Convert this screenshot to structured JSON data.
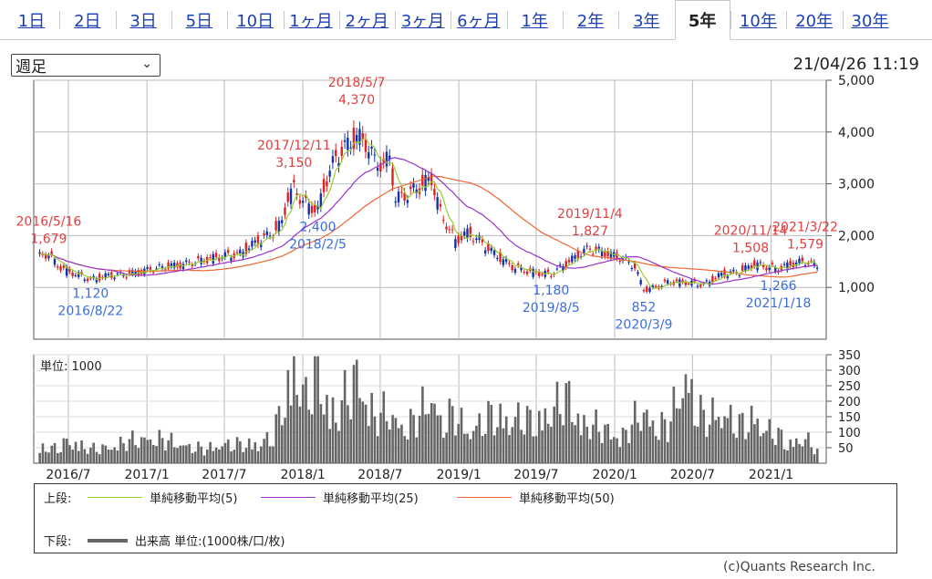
{
  "tabs": [
    "1日",
    "2日",
    "3日",
    "5日",
    "10日",
    "1ヶ月",
    "2ヶ月",
    "3ヶ月",
    "6ヶ月",
    "1年",
    "2年",
    "3年",
    "5年",
    "10年",
    "20年",
    "30年"
  ],
  "active_tab": "5年",
  "period_select": "週足",
  "timestamp": "21/04/26 11:19",
  "chart_data": [
    {
      "type": "line",
      "name": "price",
      "x_ticks": [
        "2016/7",
        "2017/1",
        "2017/7",
        "2018/1",
        "2018/7",
        "2019/1",
        "2019/7",
        "2020/1",
        "2020/7",
        "2021/1"
      ],
      "y_ticks": [
        "1,000",
        "2,000",
        "3,000",
        "4,000",
        "5,000"
      ],
      "ylim": [
        0,
        5000
      ],
      "price_series": [
        [
          "2016/4/25",
          1600
        ],
        [
          "2016/5/16",
          1650
        ],
        [
          "2016/6/6",
          1420
        ],
        [
          "2016/7/4",
          1300
        ],
        [
          "2016/8/22",
          1150
        ],
        [
          "2016/10/3",
          1230
        ],
        [
          "2016/11/14",
          1250
        ],
        [
          "2017/1/2",
          1330
        ],
        [
          "2017/2/13",
          1400
        ],
        [
          "2017/4/3",
          1450
        ],
        [
          "2017/5/15",
          1530
        ],
        [
          "2017/6/26",
          1600
        ],
        [
          "2017/8/7",
          1650
        ],
        [
          "2017/9/18",
          1900
        ],
        [
          "2017/10/23",
          2050
        ],
        [
          "2017/11/13",
          2250
        ],
        [
          "2017/11/27",
          2750
        ],
        [
          "2017/12/11",
          2900
        ],
        [
          "2018/1/8",
          2600
        ],
        [
          "2018/2/5",
          2500
        ],
        [
          "2018/2/26",
          3100
        ],
        [
          "2018/3/19",
          3500
        ],
        [
          "2018/4/9",
          3700
        ],
        [
          "2018/5/7",
          3900
        ],
        [
          "2018/5/28",
          3800
        ],
        [
          "2018/6/18",
          3450
        ],
        [
          "2018/7/9",
          3350
        ],
        [
          "2018/7/23",
          3550
        ],
        [
          "2018/8/6",
          2700
        ],
        [
          "2018/9/3",
          2800
        ],
        [
          "2018/10/1",
          2950
        ],
        [
          "2018/10/29",
          3100
        ],
        [
          "2018/11/19",
          2450
        ],
        [
          "2018/12/24",
          1900
        ],
        [
          "2019/1/21",
          2050
        ],
        [
          "2019/2/18",
          1900
        ],
        [
          "2019/3/25",
          1650
        ],
        [
          "2019/5/6",
          1400
        ],
        [
          "2019/6/17",
          1300
        ],
        [
          "2019/8/5",
          1250
        ],
        [
          "2019/9/16",
          1500
        ],
        [
          "2019/10/21",
          1700
        ],
        [
          "2019/11/4",
          1750
        ],
        [
          "2019/12/16",
          1650
        ],
        [
          "2020/1/20",
          1550
        ],
        [
          "2020/2/17",
          1400
        ],
        [
          "2020/3/9",
          950
        ],
        [
          "2020/4/6",
          1000
        ],
        [
          "2020/5/4",
          1100
        ],
        [
          "2020/6/15",
          1100
        ],
        [
          "2020/7/27",
          1050
        ],
        [
          "2020/9/7",
          1250
        ],
        [
          "2020/10/19",
          1300
        ],
        [
          "2020/11/23",
          1450
        ],
        [
          "2020/12/21",
          1400
        ],
        [
          "2021/1/18",
          1350
        ],
        [
          "2021/2/15",
          1450
        ],
        [
          "2021/3/22",
          1500
        ],
        [
          "2021/4/19",
          1420
        ]
      ],
      "annotations": [
        {
          "date": "2016/5/16",
          "value": "1,679",
          "type": "high"
        },
        {
          "date": "2016/8/22",
          "value": "1,120",
          "type": "low"
        },
        {
          "date": "2017/12/11",
          "value": "3,150",
          "type": "high"
        },
        {
          "date": "2018/2/5",
          "value": "2,400",
          "type": "low"
        },
        {
          "date": "2018/5/7",
          "value": "4,370",
          "type": "high"
        },
        {
          "date": "2019/11/4",
          "value": "1,827",
          "type": "high"
        },
        {
          "date": "2019/8/5",
          "value": "1,180",
          "type": "low"
        },
        {
          "date": "2020/3/9",
          "value": "852",
          "type": "low"
        },
        {
          "date": "2020/11/14",
          "value": "1,508",
          "type": "high"
        },
        {
          "date": "2021/3/22",
          "value": "1,579",
          "type": "high"
        },
        {
          "date": "2021/1/18",
          "value": "1,266",
          "type": "low"
        }
      ],
      "colors": {
        "ma5": "#99cc33",
        "ma25": "#9933cc",
        "ma50": "#ee6633",
        "up": "#dd2222",
        "down": "#1133aa",
        "high_label": "#e04040",
        "low_label": "#3a6de0"
      }
    },
    {
      "type": "bar",
      "name": "volume",
      "unit_label": "単位: 1000",
      "y_ticks": [
        "50",
        "100",
        "150",
        "200",
        "250",
        "300",
        "350"
      ],
      "ylim": [
        0,
        350
      ],
      "volume_series": [
        [
          "2016/4/25",
          60
        ],
        [
          "2016/6/6",
          45
        ],
        [
          "2016/7/4",
          80
        ],
        [
          "2016/8/22",
          45
        ],
        [
          "2016/10/3",
          55
        ],
        [
          "2016/11/14",
          70
        ],
        [
          "2017/1/2",
          85
        ],
        [
          "2017/2/13",
          75
        ],
        [
          "2017/4/3",
          60
        ],
        [
          "2017/5/15",
          45
        ],
        [
          "2017/6/26",
          65
        ],
        [
          "2017/8/7",
          60
        ],
        [
          "2017/9/18",
          70
        ],
        [
          "2017/10/23",
          80
        ],
        [
          "2017/11/27",
          270
        ],
        [
          "2017/12/11",
          340
        ],
        [
          "2018/1/8",
          200
        ],
        [
          "2018/2/5",
          300
        ],
        [
          "2018/3/19",
          150
        ],
        [
          "2018/4/9",
          210
        ],
        [
          "2018/5/7",
          300
        ],
        [
          "2018/6/18",
          150
        ],
        [
          "2018/7/23",
          170
        ],
        [
          "2018/8/6",
          140
        ],
        [
          "2018/9/3",
          120
        ],
        [
          "2018/10/1",
          160
        ],
        [
          "2018/10/29",
          230
        ],
        [
          "2018/11/19",
          140
        ],
        [
          "2018/12/24",
          160
        ],
        [
          "2019/1/21",
          110
        ],
        [
          "2019/2/18",
          130
        ],
        [
          "2019/3/25",
          160
        ],
        [
          "2019/5/6",
          150
        ],
        [
          "2019/6/17",
          140
        ],
        [
          "2019/8/5",
          170
        ],
        [
          "2019/9/16",
          220
        ],
        [
          "2019/10/21",
          130
        ],
        [
          "2019/12/16",
          110
        ],
        [
          "2020/1/20",
          90
        ],
        [
          "2020/2/17",
          140
        ],
        [
          "2020/3/9",
          170
        ],
        [
          "2020/4/6",
          130
        ],
        [
          "2020/5/4",
          120
        ],
        [
          "2020/6/15",
          290
        ],
        [
          "2020/7/27",
          140
        ],
        [
          "2020/9/7",
          180
        ],
        [
          "2020/10/19",
          120
        ],
        [
          "2020/11/23",
          160
        ],
        [
          "2020/12/21",
          110
        ],
        [
          "2021/1/18",
          90
        ],
        [
          "2021/2/15",
          70
        ],
        [
          "2021/3/22",
          80
        ],
        [
          "2021/4/19",
          40
        ]
      ]
    }
  ],
  "legend": {
    "upper_label": "上段:",
    "lower_label": "下段:",
    "ma5": "単純移動平均(5)",
    "ma25": "単純移動平均(25)",
    "ma50": "単純移動平均(50)",
    "volume": "出来高 単位:(1000株/口/枚)"
  },
  "copyright": "(c)Quants Research Inc."
}
